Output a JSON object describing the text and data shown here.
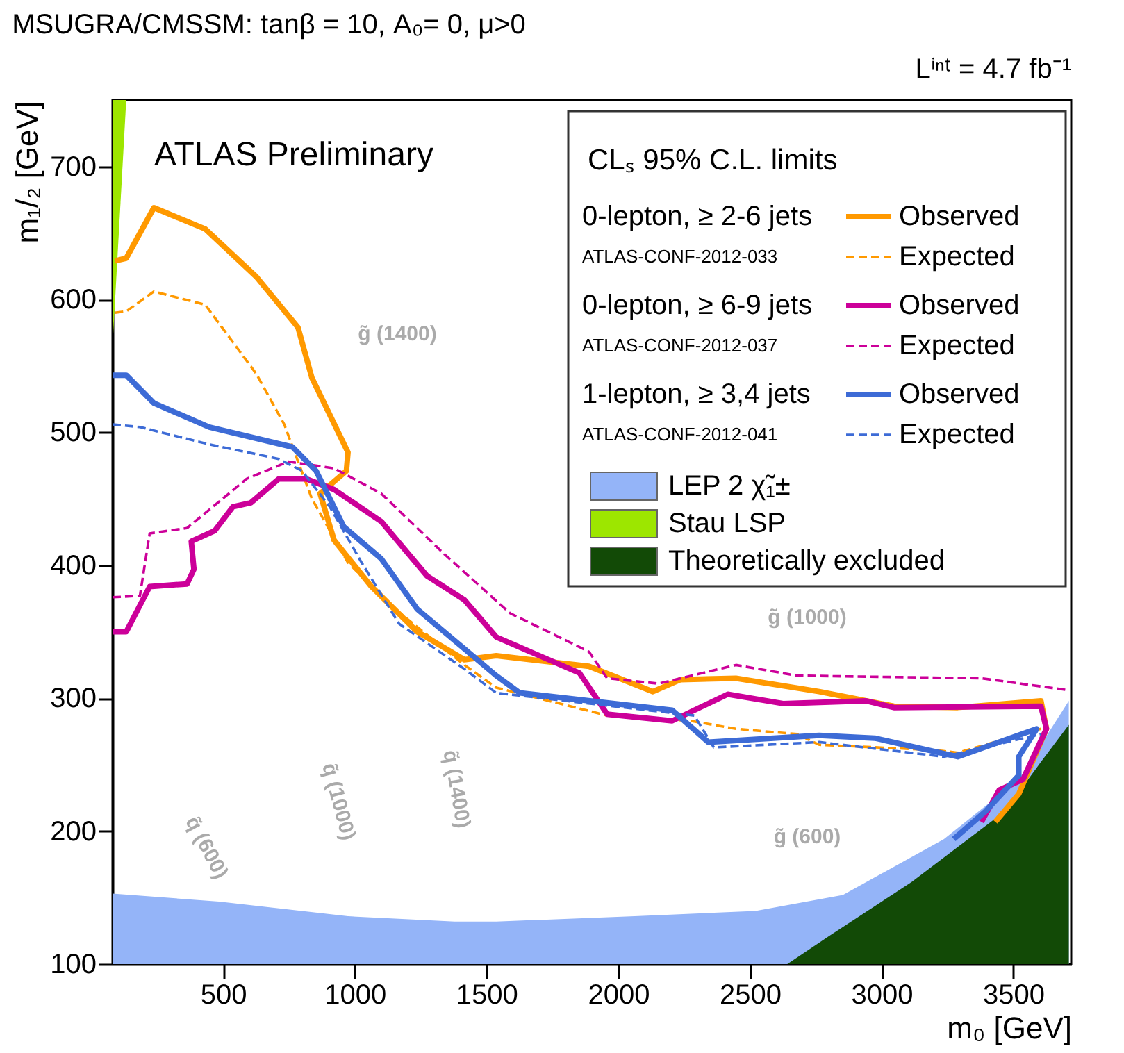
{
  "chart_data": {
    "type": "line",
    "title": "MSUGRA/CMSSM: tanβ = 10, A₀= 0, μ>0",
    "xlabel": "m₀ [GeV]",
    "ylabel": "m₁/₂ [GeV]",
    "legend_title": "CLₛ 95% C.L. limits",
    "legend": "top right",
    "grid": false,
    "xlim": [
      80,
      3720
    ],
    "ylim": [
      100,
      750
    ],
    "xticks": [
      500,
      1000,
      1500,
      2000,
      2500,
      3000,
      3500
    ],
    "yticks": [
      100,
      200,
      300,
      400,
      500,
      600,
      700
    ],
    "series": [
      {
        "name": "LEP 2 χ̃₁±",
        "type": "area",
        "color": "#94b4f8",
        "x": [
          80,
          484,
          974,
          1379,
          1537,
          2063,
          2521,
          2853,
          3237,
          3521,
          3711
        ],
        "values": [
          153,
          147,
          136,
          132,
          132,
          136,
          140,
          152,
          194,
          239,
          298
        ]
      },
      {
        "name": "Stau LSP",
        "type": "area",
        "color": "#9de600",
        "x": [
          80,
          132
        ],
        "values": [
          565,
          750
        ]
      },
      {
        "name": "Theoretically excluded",
        "type": "area",
        "color": "#124a06",
        "x": [
          2642,
          2800,
          3116,
          3468,
          3605,
          3711
        ],
        "values": [
          100,
          121,
          162,
          215,
          252,
          280
        ]
      },
      {
        "name": "Observed",
        "color": "#ff9900",
        "line_style": "solid",
        "x": [
          89,
          132,
          237,
          432,
          626,
          784,
          837,
          974,
          968,
          868,
          921,
          1063,
          1237,
          1416,
          1537,
          1889,
          2132,
          2237,
          2447,
          2763,
          3047,
          3289,
          3605,
          3626,
          3521,
          3432
        ],
        "values": [
          629,
          631,
          669,
          653,
          617,
          579,
          541,
          485,
          471,
          454,
          419,
          384,
          350,
          329,
          332,
          324,
          305,
          314,
          315,
          305,
          294,
          293,
          298,
          277,
          228,
          207
        ]
      },
      {
        "name": "Expected",
        "color": "#ff9900",
        "line_style": "dashed",
        "x": [
          89,
          132,
          237,
          432,
          626,
          732,
          837,
          974,
          1153,
          1416,
          1537,
          1958,
          2274,
          2447,
          2679,
          2763,
          3205,
          3289,
          3605
        ],
        "values": [
          590,
          591,
          606,
          596,
          544,
          506,
          450,
          402,
          367,
          325,
          308,
          287,
          283,
          277,
          273,
          265,
          261,
          259,
          277
        ]
      },
      {
        "name": "Observed",
        "color": "#cc0099",
        "line_style": "solid",
        "x": [
          80,
          132,
          221,
          363,
          389,
          379,
          468,
          537,
          605,
          711,
          816,
          921,
          1100,
          1274,
          1416,
          1537,
          1853,
          1958,
          2205,
          2416,
          2626,
          2942,
          3047,
          3605,
          3626,
          3537,
          3447,
          3379
        ],
        "values": [
          350,
          350,
          384,
          386,
          397,
          418,
          426,
          444,
          447,
          465,
          465,
          457,
          433,
          392,
          374,
          346,
          319,
          288,
          283,
          303,
          296,
          298,
          293,
          294,
          277,
          239,
          231,
          207
        ]
      },
      {
        "name": "Expected",
        "color": "#cc0099",
        "line_style": "dashed",
        "x": [
          80,
          184,
          221,
          363,
          589,
          747,
          921,
          1100,
          1342,
          1589,
          1889,
          1958,
          2153,
          2447,
          2679,
          3379,
          3711
        ],
        "values": [
          376,
          377,
          424,
          428,
          465,
          478,
          473,
          454,
          408,
          364,
          335,
          315,
          311,
          325,
          317,
          315,
          306
        ]
      },
      {
        "name": "Observed",
        "color": "#3d6bd6",
        "line_style": "solid",
        "x": [
          80,
          132,
          237,
          447,
          763,
          853,
          958,
          1100,
          1237,
          1447,
          1537,
          1626,
          2205,
          2342,
          2763,
          2974,
          3289,
          3589,
          3521,
          3521,
          3395,
          3274
        ],
        "values": [
          543,
          543,
          522,
          504,
          489,
          471,
          429,
          405,
          367,
          332,
          317,
          304,
          291,
          267,
          272,
          270,
          256,
          277,
          256,
          242,
          215,
          194
        ]
      },
      {
        "name": "Expected",
        "color": "#3d6bd6",
        "line_style": "dashed",
        "x": [
          80,
          184,
          447,
          711,
          800,
          905,
          1026,
          1168,
          1416,
          1537,
          2289,
          2363,
          2763,
          3237,
          3605
        ],
        "values": [
          506,
          504,
          491,
          480,
          471,
          444,
          402,
          356,
          322,
          304,
          287,
          263,
          267,
          256,
          273
        ]
      }
    ],
    "annotations": [
      "ATLAS Preliminary",
      "Lⁱⁿᵗ = 4.7 fb⁻¹",
      "0-lepton, ≥ 2-6 jets",
      "ATLAS-CONF-2012-033",
      "0-lepton, ≥ 6-9 jets",
      "ATLAS-CONF-2012-037",
      "1-lepton, ≥ 3,4 jets",
      "ATLAS-CONF-2012-041",
      "g̃ (1400)",
      "g̃ (1000)",
      "g̃ (600)",
      "q̃ (600)",
      "q̃ (1000)",
      "q̃ (1400)"
    ]
  }
}
